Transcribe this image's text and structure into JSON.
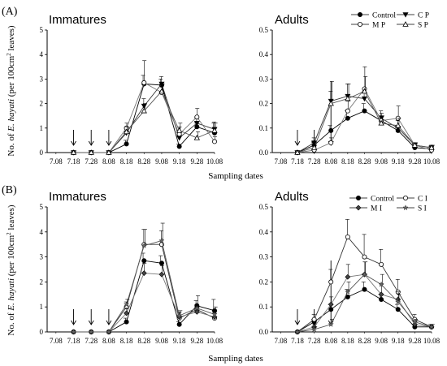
{
  "figure": {
    "panel_a_label": "(A)",
    "panel_b_label": "(B)",
    "ylabel_prefix": "No. of ",
    "ylabel_species": "E. hayati",
    "ylabel_suffix_a": " (per 100cm",
    "ylabel_sup": "2",
    "ylabel_suffix_b": " leaves)",
    "xlabel": "Sampling dates"
  },
  "chart_data": [
    {
      "id": "A-immatures",
      "type": "line",
      "title": "Immatures",
      "x_ticks": [
        "7.08",
        "7.18",
        "7.28",
        "8.08",
        "8.18",
        "8.28",
        "9.08",
        "9.18",
        "9.28",
        "10.08"
      ],
      "ylim": [
        0,
        5
      ],
      "y_ticks": [
        "0",
        "1",
        "2",
        "3",
        "4",
        "5"
      ],
      "arrows_at": [
        "7.18",
        "7.28",
        "8.08"
      ],
      "series": [
        {
          "name": "Control",
          "marker": "filled-circle",
          "x": [
            "7.18",
            "7.28",
            "8.08",
            "8.18",
            "8.28",
            "9.08",
            "9.18",
            "9.28",
            "10.08"
          ],
          "values": [
            0,
            0,
            0,
            0.35,
            2.8,
            2.75,
            0.25,
            1.05,
            0.8
          ],
          "errors": [
            0,
            0,
            0,
            0.15,
            0.35,
            0.25,
            0.1,
            0.15,
            0.4
          ]
        },
        {
          "name": "C P",
          "marker": "filled-triangle-down",
          "x": [
            "7.18",
            "7.28",
            "8.08",
            "8.18",
            "8.28",
            "9.08",
            "9.18",
            "9.28",
            "10.08"
          ],
          "values": [
            0,
            0,
            0,
            0.8,
            1.9,
            2.8,
            0.6,
            1.2,
            0.95
          ],
          "errors": [
            0,
            0,
            0,
            0.2,
            0.3,
            0.3,
            0.3,
            0.2,
            0.3
          ]
        },
        {
          "name": "M P",
          "marker": "open-circle",
          "x": [
            "7.18",
            "7.28",
            "8.08",
            "8.18",
            "8.28",
            "9.08",
            "9.18",
            "9.28",
            "10.08"
          ],
          "values": [
            0,
            0,
            0,
            1.0,
            2.85,
            2.45,
            0.75,
            1.45,
            0.45
          ],
          "errors": [
            0,
            0,
            0,
            0.2,
            0.9,
            0.3,
            0.3,
            0.35,
            0.2
          ]
        },
        {
          "name": "S P",
          "marker": "open-triangle-up",
          "x": [
            "7.18",
            "7.28",
            "8.08",
            "8.18",
            "8.28",
            "9.08",
            "9.18",
            "9.28",
            "10.08"
          ],
          "values": [
            0,
            0,
            0,
            0.85,
            1.7,
            2.5,
            0.9,
            0.6,
            0.9
          ],
          "errors": [
            0,
            0,
            0,
            0.2,
            0.3,
            0.3,
            0.3,
            0.25,
            0.3
          ]
        }
      ]
    },
    {
      "id": "A-adults",
      "type": "line",
      "title": "Adults",
      "x_ticks": [
        "7.08",
        "7.18",
        "7.28",
        "8.08",
        "8.18",
        "8.28",
        "9.08",
        "9.18",
        "9.28",
        "10.08"
      ],
      "ylim": [
        0,
        0.5
      ],
      "y_ticks": [
        "0.0",
        "0.1",
        "0.2",
        "0.3",
        "0.4",
        "0.5"
      ],
      "arrows_at": [
        "7.18",
        "7.28",
        "8.08"
      ],
      "legend": {
        "position": "top-right",
        "items": [
          "Control",
          "C P",
          "M P",
          "S P"
        ]
      },
      "series": [
        {
          "name": "Control",
          "marker": "filled-circle",
          "x": [
            "7.18",
            "7.28",
            "8.08",
            "8.18",
            "8.28",
            "9.08",
            "9.18",
            "9.28",
            "10.08"
          ],
          "values": [
            0,
            0.03,
            0.09,
            0.14,
            0.17,
            0.13,
            0.09,
            0.02,
            0.015
          ],
          "errors": [
            0,
            0.01,
            0.02,
            0.03,
            0.03,
            0.02,
            0.02,
            0.01,
            0.01
          ]
        },
        {
          "name": "C P",
          "marker": "filled-triangle-down",
          "x": [
            "7.18",
            "7.28",
            "8.08",
            "8.18",
            "8.28",
            "9.08",
            "9.18",
            "9.28",
            "10.08"
          ],
          "values": [
            0,
            0.04,
            0.21,
            0.23,
            0.22,
            0.14,
            0.1,
            0.03,
            0.02
          ],
          "errors": [
            0,
            0.02,
            0.04,
            0.05,
            0.04,
            0.03,
            0.03,
            0.01,
            0.01
          ]
        },
        {
          "name": "M P",
          "marker": "open-circle",
          "x": [
            "7.18",
            "7.28",
            "8.08",
            "8.18",
            "8.28",
            "9.08",
            "9.18",
            "9.28",
            "10.08"
          ],
          "values": [
            0,
            0.01,
            0.04,
            0.17,
            0.26,
            0.13,
            0.14,
            0.03,
            0.01
          ],
          "errors": [
            0,
            0.01,
            0.02,
            0.04,
            0.09,
            0.03,
            0.05,
            0.01,
            0.01
          ]
        },
        {
          "name": "S P",
          "marker": "open-triangle-up",
          "x": [
            "7.18",
            "7.28",
            "8.08",
            "8.18",
            "8.28",
            "9.08",
            "9.18",
            "9.28",
            "10.08"
          ],
          "values": [
            0,
            0.02,
            0.2,
            0.22,
            0.25,
            0.12,
            0.11,
            0.03,
            0.02
          ],
          "errors": [
            0,
            0.02,
            0.09,
            0.06,
            0.06,
            0.03,
            0.03,
            0.01,
            0.01
          ]
        }
      ]
    },
    {
      "id": "B-immatures",
      "type": "line",
      "title": "Immatures",
      "x_ticks": [
        "7.08",
        "7.18",
        "7.28",
        "8.08",
        "8.18",
        "8.28",
        "9.08",
        "9.18",
        "9.28",
        "10.08"
      ],
      "ylim": [
        0,
        5
      ],
      "y_ticks": [
        "0",
        "1",
        "2",
        "3",
        "4",
        "5"
      ],
      "arrows_at": [
        "7.18",
        "7.28",
        "8.08"
      ],
      "series": [
        {
          "name": "Control",
          "marker": "filled-circle",
          "x": [
            "7.18",
            "7.28",
            "8.08",
            "8.18",
            "8.28",
            "9.08",
            "9.18",
            "9.28",
            "10.08"
          ],
          "values": [
            0,
            0,
            0,
            0.4,
            2.85,
            2.75,
            0.3,
            1.05,
            0.85
          ],
          "errors": [
            0,
            0,
            0,
            0.15,
            0.3,
            0.3,
            0.1,
            0.2,
            0.45
          ]
        },
        {
          "name": "C I",
          "marker": "open-circle",
          "x": [
            "7.18",
            "7.28",
            "8.08",
            "8.18",
            "8.28",
            "9.08",
            "9.18",
            "9.28",
            "10.08"
          ],
          "values": [
            0,
            0,
            0,
            1.0,
            3.5,
            3.5,
            0.55,
            0.9,
            0.55
          ],
          "errors": [
            0,
            0,
            0,
            0.2,
            0.6,
            0.55,
            0.2,
            0.2,
            0.2
          ]
        },
        {
          "name": "M I",
          "marker": "filled-diamond",
          "x": [
            "7.18",
            "7.28",
            "8.08",
            "8.18",
            "8.28",
            "9.08",
            "9.18",
            "9.28",
            "10.08"
          ],
          "values": [
            0,
            0,
            0,
            0.75,
            2.35,
            2.3,
            0.6,
            0.8,
            0.6
          ],
          "errors": [
            0,
            0,
            0,
            0.2,
            0.4,
            0.35,
            0.2,
            0.2,
            0.2
          ]
        },
        {
          "name": "S I",
          "marker": "star",
          "x": [
            "7.18",
            "7.28",
            "8.08",
            "8.18",
            "8.28",
            "9.08",
            "9.18",
            "9.28",
            "10.08"
          ],
          "values": [
            0,
            0,
            0,
            1.1,
            3.45,
            3.65,
            0.65,
            0.95,
            0.7
          ],
          "errors": [
            0,
            0,
            0,
            0.2,
            0.65,
            0.7,
            0.2,
            0.5,
            0.3
          ]
        }
      ]
    },
    {
      "id": "B-adults",
      "type": "line",
      "title": "Adults",
      "x_ticks": [
        "7.08",
        "7.18",
        "7.28",
        "8.08",
        "8.18",
        "8.28",
        "9.08",
        "9.18",
        "9.28",
        "10.08"
      ],
      "ylim": [
        0,
        0.5
      ],
      "y_ticks": [
        "0.0",
        "0.1",
        "0.2",
        "0.3",
        "0.4",
        "0.5"
      ],
      "arrows_at": [
        "7.18",
        "7.28",
        "8.08"
      ],
      "legend": {
        "position": "top-right",
        "items": [
          "Control",
          "C I",
          "M I",
          "S I"
        ]
      },
      "series": [
        {
          "name": "Control",
          "marker": "filled-circle",
          "x": [
            "7.18",
            "7.28",
            "8.08",
            "8.18",
            "8.28",
            "9.08",
            "9.18",
            "9.28",
            "10.08"
          ],
          "values": [
            0,
            0.04,
            0.09,
            0.14,
            0.17,
            0.13,
            0.09,
            0.02,
            0.02
          ],
          "errors": [
            0,
            0.01,
            0.02,
            0.03,
            0.03,
            0.02,
            0.02,
            0.01,
            0.01
          ]
        },
        {
          "name": "C I",
          "marker": "open-circle",
          "x": [
            "7.18",
            "7.28",
            "8.08",
            "8.18",
            "8.28",
            "9.08",
            "9.18",
            "9.28",
            "10.08"
          ],
          "values": [
            0,
            0.05,
            0.2,
            0.38,
            0.3,
            0.27,
            0.16,
            0.05,
            0.02
          ],
          "errors": [
            0,
            0.02,
            0.05,
            0.07,
            0.09,
            0.06,
            0.05,
            0.02,
            0.01
          ]
        },
        {
          "name": "M I",
          "marker": "filled-diamond",
          "x": [
            "7.18",
            "7.28",
            "8.08",
            "8.18",
            "8.28",
            "9.08",
            "9.18",
            "9.28",
            "10.08"
          ],
          "values": [
            0,
            0.02,
            0.11,
            0.22,
            0.23,
            0.15,
            0.13,
            0.03,
            0.02
          ],
          "errors": [
            0,
            0.01,
            0.03,
            0.05,
            0.05,
            0.04,
            0.03,
            0.01,
            0.01
          ]
        },
        {
          "name": "S I",
          "marker": "star",
          "x": [
            "7.18",
            "7.28",
            "8.08",
            "8.18",
            "8.28",
            "9.08",
            "9.18",
            "9.28",
            "10.08"
          ],
          "values": [
            0,
            0.01,
            0.03,
            0.16,
            0.23,
            0.19,
            0.12,
            0.04,
            0.02
          ],
          "errors": [
            0,
            0.01,
            0.02,
            0.04,
            0.05,
            0.04,
            0.03,
            0.01,
            0.01
          ]
        }
      ]
    }
  ]
}
